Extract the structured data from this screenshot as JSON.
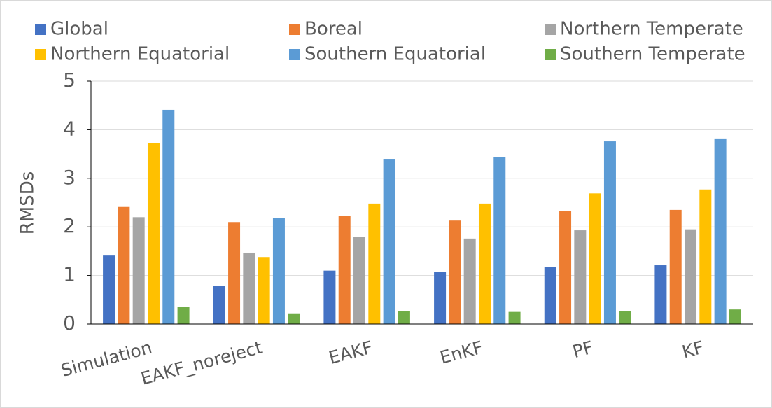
{
  "chart_data": {
    "type": "bar",
    "y_label": "RMSDs",
    "categories": [
      "Simulation",
      "EAKF_noreject",
      "EAKF",
      "EnKF",
      "PF",
      "KF"
    ],
    "series": [
      {
        "name": "Global",
        "color": "#4472c4",
        "values": [
          1.41,
          0.78,
          1.1,
          1.07,
          1.18,
          1.21
        ]
      },
      {
        "name": "Boreal",
        "color": "#ed7d31",
        "values": [
          2.41,
          2.1,
          2.23,
          2.13,
          2.32,
          2.35
        ]
      },
      {
        "name": "Northern Temperate",
        "color": "#a5a5a5",
        "values": [
          2.2,
          1.47,
          1.8,
          1.76,
          1.93,
          1.95
        ]
      },
      {
        "name": "Northern Equatorial",
        "color": "#ffc000",
        "values": [
          3.73,
          1.38,
          2.48,
          2.48,
          2.69,
          2.77
        ]
      },
      {
        "name": "Southern Equatorial",
        "color": "#5b9bd5",
        "values": [
          4.41,
          2.18,
          3.4,
          3.43,
          3.76,
          3.82
        ]
      },
      {
        "name": "Southern Temperate",
        "color": "#70ad47",
        "values": [
          0.35,
          0.22,
          0.26,
          0.25,
          0.27,
          0.3
        ]
      }
    ],
    "ylim": [
      0,
      5
    ],
    "yticks": [
      0,
      1,
      2,
      3,
      4,
      5
    ],
    "grid": true,
    "legend": "top"
  }
}
